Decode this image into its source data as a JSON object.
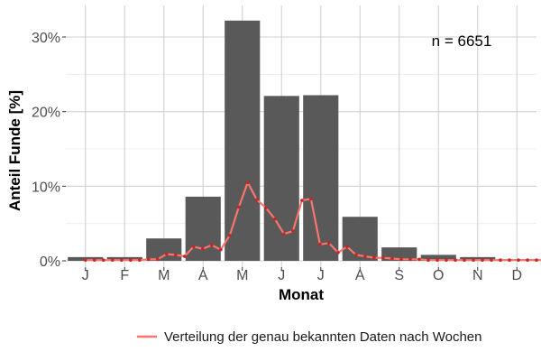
{
  "chart_data": {
    "type": "bar",
    "categories": [
      "J",
      "F",
      "M",
      "A",
      "M",
      "J",
      "J",
      "A",
      "S",
      "O",
      "N",
      "D"
    ],
    "values": [
      0.5,
      0.5,
      3.0,
      8.6,
      32.2,
      22.1,
      22.2,
      5.9,
      1.8,
      0.8,
      0.5,
      0.2
    ],
    "ylim": [
      0,
      33
    ],
    "yticks": [
      0,
      10,
      20,
      30
    ],
    "yticklabels": [
      "0%",
      "10%",
      "20%",
      "30%"
    ],
    "xlabel": "Monat",
    "ylabel": "Anteil Funde [%]",
    "annotation": "n = 6651",
    "grid": true,
    "bar_color": "#595959",
    "line_series": {
      "name": "Verteilung der genau bekannten Daten nach Wochen",
      "color": "#f8766d",
      "marker_color": "#cc2222",
      "x": [
        0.5,
        0.73,
        0.96,
        1.19,
        1.42,
        1.65,
        1.88,
        2.11,
        2.34,
        2.57,
        2.8,
        3.03,
        3.26,
        3.49,
        3.72,
        3.95,
        4.18,
        4.41,
        4.64,
        4.87,
        5.1,
        5.33,
        5.56,
        5.79,
        6.02,
        6.25,
        6.48,
        6.71,
        6.94,
        7.17,
        7.4,
        7.63,
        7.86,
        8.09,
        8.32,
        8.55,
        8.78,
        9.01,
        9.24,
        9.47,
        9.7,
        9.93,
        10.16,
        10.39,
        10.62,
        10.85,
        11.08,
        11.31,
        11.54,
        11.77,
        12.0,
        12.23,
        12.5
      ],
      "y": [
        0.1,
        0.1,
        0.1,
        0.1,
        0.1,
        0.1,
        0.1,
        0.2,
        0.2,
        0.9,
        0.8,
        0.6,
        1.9,
        1.6,
        2.1,
        1.5,
        3.4,
        7.2,
        10.5,
        8.2,
        7.1,
        5.6,
        3.6,
        4.0,
        8.1,
        8.3,
        2.2,
        2.4,
        1.1,
        1.9,
        0.8,
        0.6,
        0.4,
        0.4,
        0.3,
        0.2,
        0.2,
        0.2,
        0.1,
        0.1,
        0.1,
        0.1,
        0.1,
        0.1,
        0.1,
        0.1,
        0.1,
        0.1,
        0.1,
        0.1,
        0.1,
        0.1,
        0.1
      ]
    }
  }
}
